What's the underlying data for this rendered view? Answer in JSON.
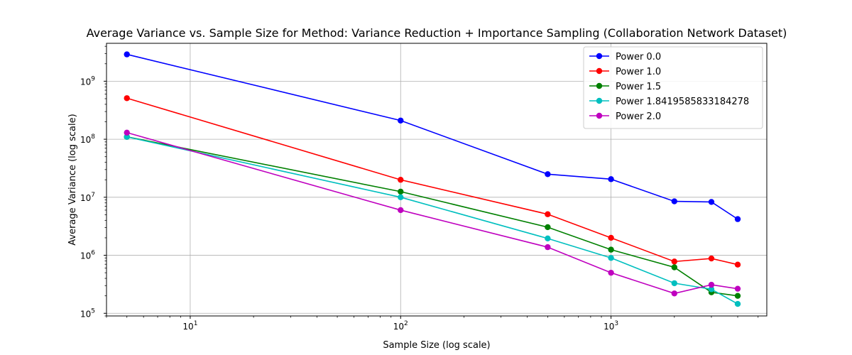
{
  "chart_data": {
    "type": "line",
    "title": "Average Variance vs. Sample Size for Method: Variance Reduction + Importance Sampling (Collaboration Network Dataset)",
    "xlabel": "Sample Size (log scale)",
    "ylabel": "Average Variance (log scale)",
    "xscale": "log",
    "yscale": "log",
    "xlim": [
      4,
      5500
    ],
    "ylim": [
      90000,
      4500000000
    ],
    "grid": true,
    "legend_position": "top-right",
    "x_ticks": [
      {
        "value": 10,
        "base": "10",
        "exp": "1"
      },
      {
        "value": 100,
        "base": "10",
        "exp": "2"
      },
      {
        "value": 1000,
        "base": "10",
        "exp": "3"
      }
    ],
    "y_ticks": [
      {
        "value": 100000,
        "base": "10",
        "exp": "5"
      },
      {
        "value": 1000000,
        "base": "10",
        "exp": "6"
      },
      {
        "value": 10000000,
        "base": "10",
        "exp": "7"
      },
      {
        "value": 100000000,
        "base": "10",
        "exp": "8"
      },
      {
        "value": 1000000000,
        "base": "10",
        "exp": "9"
      }
    ],
    "x": [
      5,
      100,
      500,
      1000,
      2000,
      3000,
      4000
    ],
    "series": [
      {
        "name": "Power 0.0",
        "color": "#0000ff",
        "values": [
          2900000000,
          210000000,
          25000000,
          20500000,
          8500000,
          8300000,
          4200000
        ]
      },
      {
        "name": "Power 1.0",
        "color": "#ff0000",
        "values": [
          510000000,
          20000000,
          5100000,
          2000000,
          780000,
          880000,
          690000
        ]
      },
      {
        "name": "Power 1.5",
        "color": "#008000",
        "values": [
          110000000,
          12500000,
          3050000,
          1250000,
          620000,
          230000,
          200000
        ]
      },
      {
        "name": "Power 1.8419585833184278",
        "color": "#00bfbf",
        "values": [
          110000000,
          10000000,
          1950000,
          900000,
          330000,
          260000,
          145000
        ]
      },
      {
        "name": "Power 2.0",
        "color": "#bf00bf",
        "values": [
          130000000,
          6000000,
          1380000,
          500000,
          220000,
          310000,
          265000
        ]
      }
    ]
  }
}
